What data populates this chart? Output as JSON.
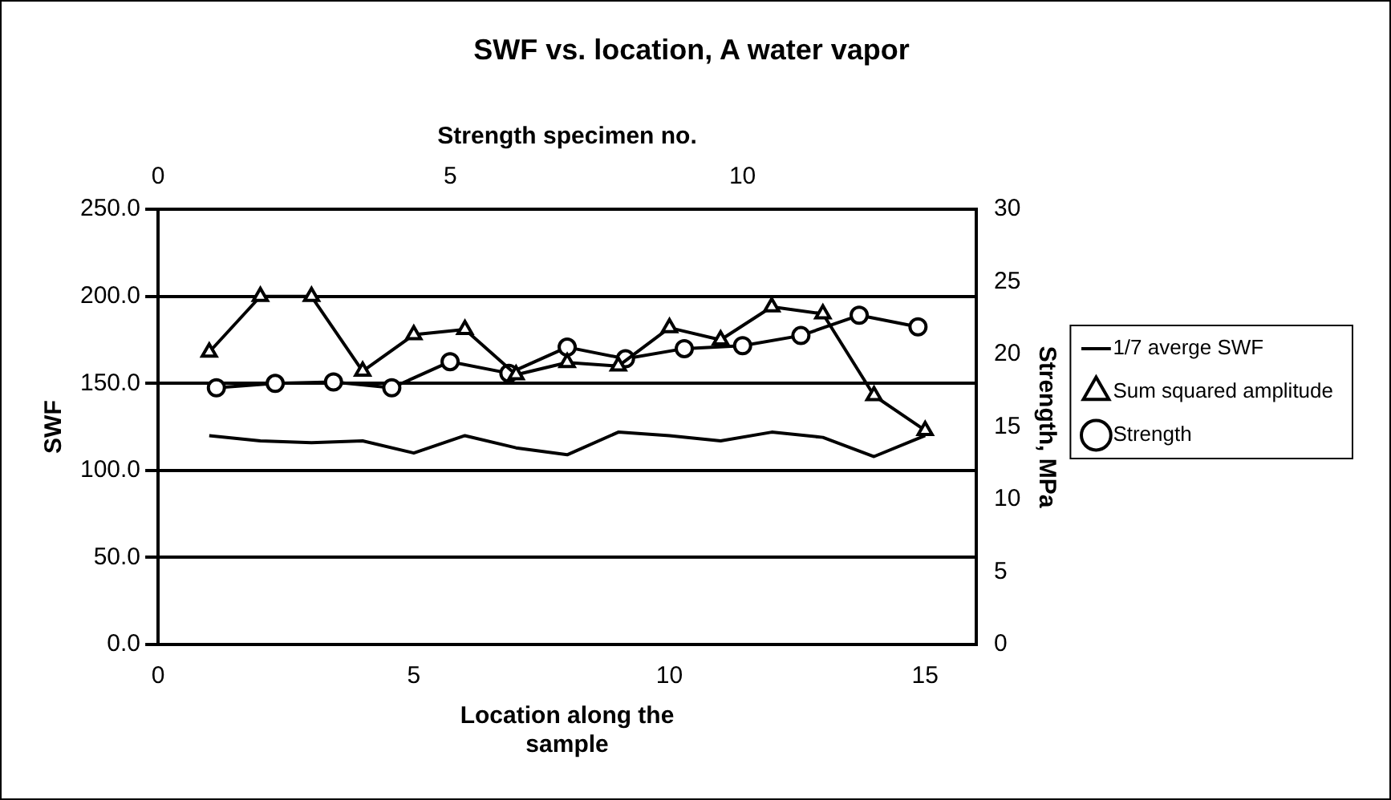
{
  "chart_data": {
    "type": "line",
    "title": "SWF vs. location, A water vapor",
    "xlabel": "Location along the sample",
    "x2label": "Strength specimen no.",
    "ylabel": "SWF",
    "y2label": "Strength, MPa",
    "xlim": [
      0,
      16
    ],
    "xticks": [
      0,
      5,
      10,
      15
    ],
    "x2lim": [
      0,
      14
    ],
    "x2ticks": [
      0,
      5,
      10
    ],
    "ylim": [
      0,
      250
    ],
    "yticks": [
      {
        "value": 0,
        "label": "0.0"
      },
      {
        "value": 50,
        "label": "50.0"
      },
      {
        "value": 100,
        "label": "100.0"
      },
      {
        "value": 150,
        "label": "150.0"
      },
      {
        "value": 200,
        "label": "200.0"
      },
      {
        "value": 250,
        "label": "250.0"
      }
    ],
    "y2lim": [
      0,
      30
    ],
    "y2ticks": [
      0,
      5,
      10,
      15,
      20,
      25,
      30
    ],
    "grid": "y",
    "legend": "right",
    "series": [
      {
        "name": "1/7 averge SWF",
        "type": "line",
        "color": "#000000",
        "marker": "none",
        "x": [
          1,
          2,
          3,
          4,
          5,
          6,
          7,
          8,
          9,
          10,
          11,
          12,
          13,
          14,
          15
        ],
        "values": [
          120,
          117,
          116,
          117,
          110,
          120,
          113,
          109,
          122,
          120,
          117,
          122,
          119,
          108,
          120
        ]
      },
      {
        "name": "Sum squared amplitude",
        "type": "line",
        "color": "#000000",
        "marker": "triangle",
        "x": [
          1,
          2,
          3,
          4,
          5,
          6,
          7,
          8,
          9,
          10,
          11,
          12,
          13,
          14,
          15
        ],
        "values": [
          168,
          200,
          200,
          157,
          178,
          181,
          155,
          162,
          160,
          182,
          175,
          194,
          190,
          143,
          123
        ]
      },
      {
        "name": "Strength",
        "type": "line",
        "color": "#000000",
        "marker": "circle",
        "axis": "y2",
        "x": [
          1.14,
          2.29,
          3.43,
          4.57,
          5.71,
          6.86,
          8.0,
          9.14,
          10.29,
          11.43,
          12.57,
          13.71,
          14.86
        ],
        "values": [
          17.7,
          18,
          18.1,
          17.7,
          19.5,
          18.7,
          20.5,
          19.7,
          20.4,
          20.6,
          21.3,
          22.7,
          21.9
        ]
      }
    ]
  }
}
